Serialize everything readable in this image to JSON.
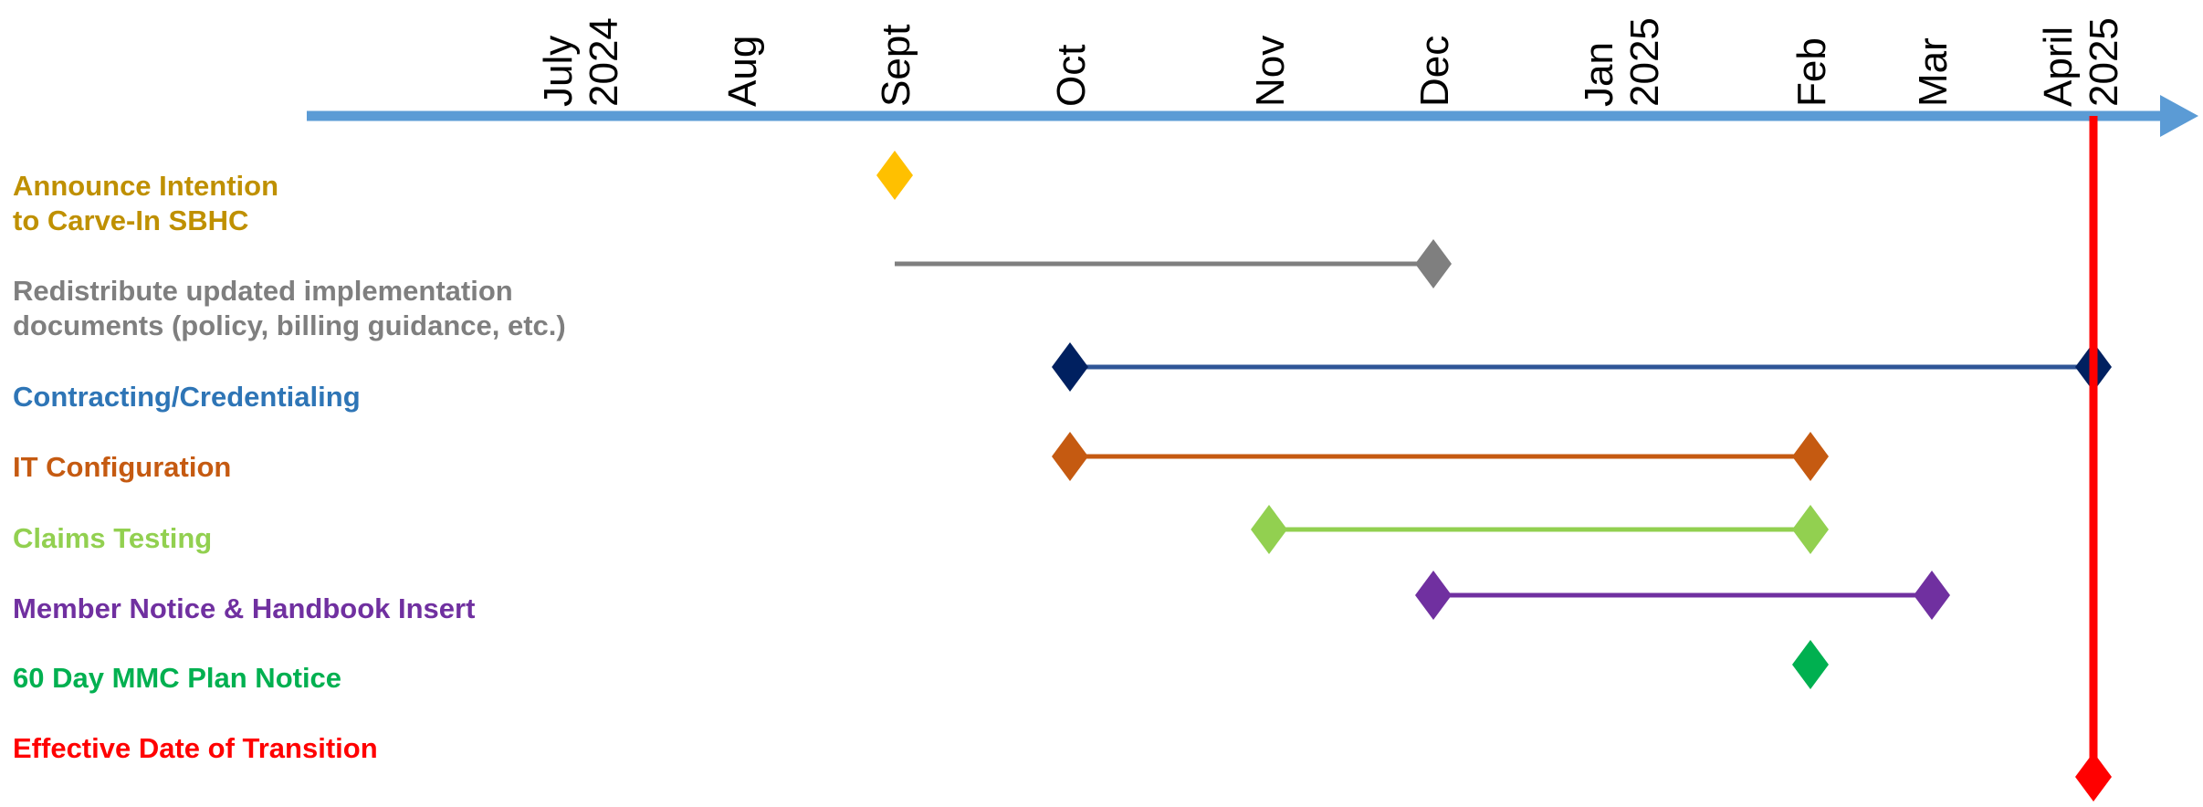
{
  "timeline": {
    "axis_color": "#5b9bd5",
    "months": [
      {
        "label": "July",
        "year": "2024"
      },
      {
        "label": "Aug",
        "year": ""
      },
      {
        "label": "Sept",
        "year": ""
      },
      {
        "label": "Oct",
        "year": ""
      },
      {
        "label": "Nov",
        "year": ""
      },
      {
        "label": "Dec",
        "year": ""
      },
      {
        "label": "Jan",
        "year": "2025"
      },
      {
        "label": "Feb",
        "year": ""
      },
      {
        "label": "Mar",
        "year": ""
      },
      {
        "label": "April",
        "year": "2025"
      }
    ]
  },
  "tasks": [
    {
      "label_lines": [
        "Announce Intention",
        "to Carve-In SBHC"
      ],
      "color": "#bf9000",
      "marker_color": "#ffc000",
      "start": "Sept",
      "end": "Sept"
    },
    {
      "label_lines": [
        "Redistribute updated implementation",
        "documents (policy, billing guidance, etc.)"
      ],
      "color": "#7f7f7f",
      "marker_color": "#7f7f7f",
      "start": "Sept",
      "end": "Dec"
    },
    {
      "label_lines": [
        "Contracting/Credentialing"
      ],
      "color": "#2e75b6",
      "marker_color": "#002060",
      "line_color": "#2f5597",
      "start": "Oct",
      "end": "April"
    },
    {
      "label_lines": [
        "IT Configuration"
      ],
      "color": "#c55a11",
      "marker_color": "#c55a11",
      "start": "Oct",
      "end": "Feb"
    },
    {
      "label_lines": [
        "Claims Testing"
      ],
      "color": "#92d050",
      "marker_color": "#92d050",
      "start": "Nov",
      "end": "Feb"
    },
    {
      "label_lines": [
        "Member Notice & Handbook Insert"
      ],
      "color": "#7030a0",
      "marker_color": "#7030a0",
      "start": "Dec",
      "end": "Mar"
    },
    {
      "label_lines": [
        "60 Day MMC Plan Notice"
      ],
      "color": "#00b050",
      "marker_color": "#00b050",
      "start": "Feb",
      "end": "Feb"
    },
    {
      "label_lines": [
        "Effective Date of Transition"
      ],
      "color": "#ff0000",
      "marker_color": "#ff0000",
      "start": "April",
      "end": "April",
      "milestone_line": true
    }
  ]
}
